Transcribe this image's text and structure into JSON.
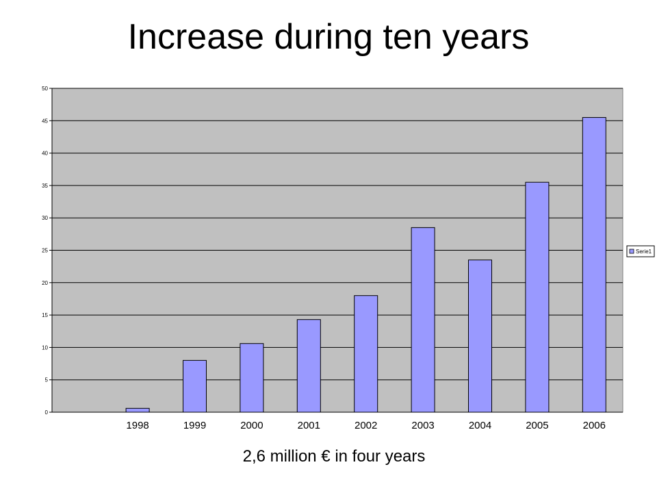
{
  "page": {
    "title": "Increase during ten years",
    "subtitle": "2,6 million € in four years"
  },
  "colors": {
    "plot_background": "#c0c0c0",
    "bar_fill": "#9999ff",
    "bar_stroke": "#000000",
    "gridline": "#000000"
  },
  "chart_data": {
    "type": "bar",
    "categories": [
      "1998",
      "1999",
      "2000",
      "2001",
      "2002",
      "2003",
      "2004",
      "2005",
      "2006"
    ],
    "series": [
      {
        "name": "Serie1",
        "values": [
          0.6,
          8,
          10.6,
          14.3,
          18,
          28.5,
          23.5,
          35.5,
          45.5
        ]
      }
    ],
    "ylim": [
      0,
      50
    ],
    "yticks": [
      0,
      5,
      10,
      15,
      20,
      25,
      30,
      35,
      40,
      45,
      50
    ],
    "grid": true,
    "legend": "right"
  }
}
